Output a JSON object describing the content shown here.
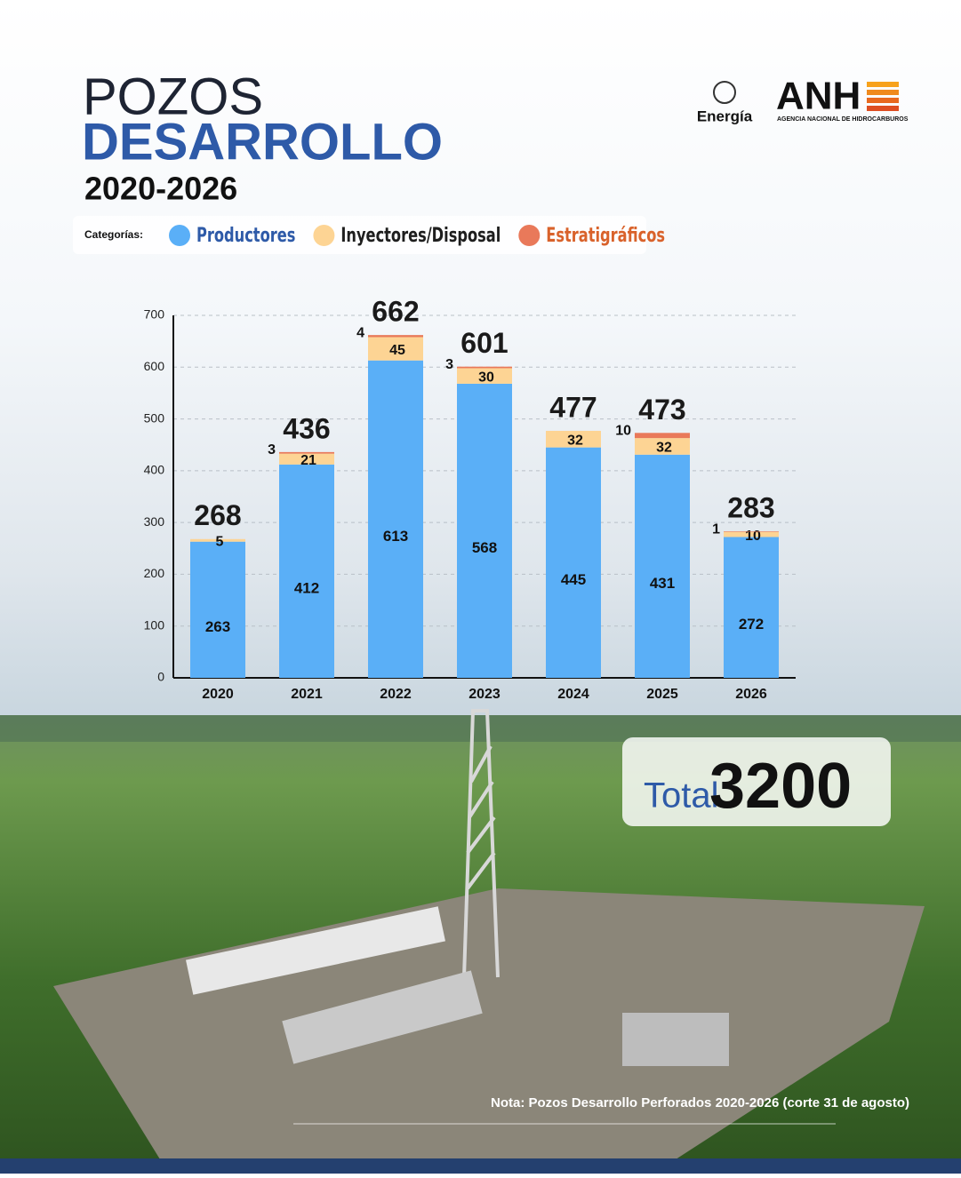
{
  "header": {
    "title_line1": "POZOS",
    "title_line2": "DESARROLLO",
    "period": "2020-2026",
    "legend_label": "Categorías:"
  },
  "logos": {
    "ministry": "Energía",
    "agency": "ANH",
    "agency_full": "AGENCIA NACIONAL DE HIDROCARBUROS"
  },
  "total": {
    "label": "Total",
    "value": 3200
  },
  "note": "Nota: Pozos Desarrollo Perforados 2020-2026 (corte 31 de agosto)",
  "chart_data": {
    "type": "stacked_bar",
    "categories": [
      "2020",
      "2021",
      "2022",
      "2023",
      "2024",
      "2025",
      "2026"
    ],
    "series": [
      {
        "name": "Productores",
        "color": "#5aaff7",
        "text_color": "#2e5aa8",
        "values": [
          263,
          412,
          613,
          568,
          445,
          431,
          272
        ]
      },
      {
        "name": "Inyectores/Disposal",
        "color": "#fdd494",
        "text_color": "#1e1e1e",
        "values": [
          5,
          21,
          45,
          30,
          32,
          32,
          10
        ]
      },
      {
        "name": "Estratigráficos",
        "color": "#e9795a",
        "text_color": "#d9622b",
        "values": [
          0,
          3,
          4,
          3,
          0,
          10,
          1
        ]
      }
    ],
    "totals": [
      268,
      436,
      662,
      601,
      477,
      473,
      283
    ],
    "ylim": [
      0,
      700
    ],
    "yticks": [
      0,
      100,
      200,
      300,
      400,
      500,
      600,
      700
    ],
    "grid": true
  }
}
